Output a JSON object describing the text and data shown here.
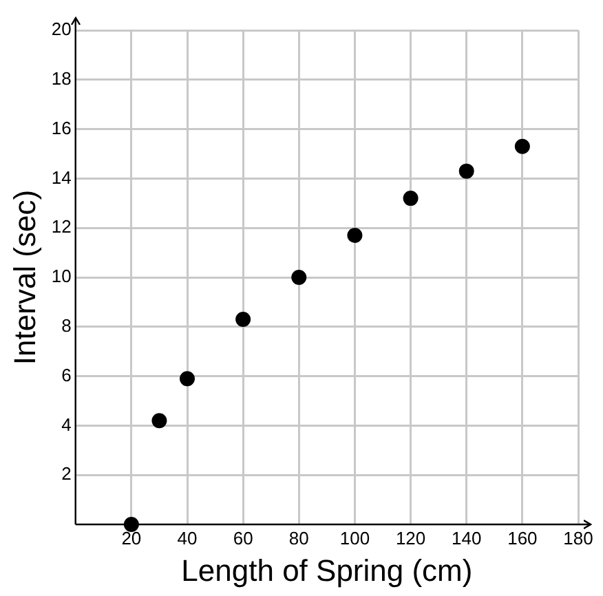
{
  "chart_data": {
    "type": "scatter",
    "xlabel": "Length of Spring (cm)",
    "ylabel": "Interval (sec)",
    "x": [
      20,
      30,
      40,
      60,
      80,
      100,
      120,
      140,
      160
    ],
    "values": [
      0,
      4.2,
      5.9,
      8.3,
      10,
      11.7,
      13.2,
      14.3,
      15.3
    ],
    "color": "#000000",
    "marker": "circle",
    "xlim": [
      0,
      180
    ],
    "xticks": [
      20,
      40,
      60,
      80,
      100,
      120,
      140,
      160,
      180
    ],
    "ylim": [
      0,
      20
    ],
    "yticks": [
      2,
      4,
      6,
      8,
      10,
      12,
      14,
      16,
      18,
      20
    ],
    "grid": true
  }
}
